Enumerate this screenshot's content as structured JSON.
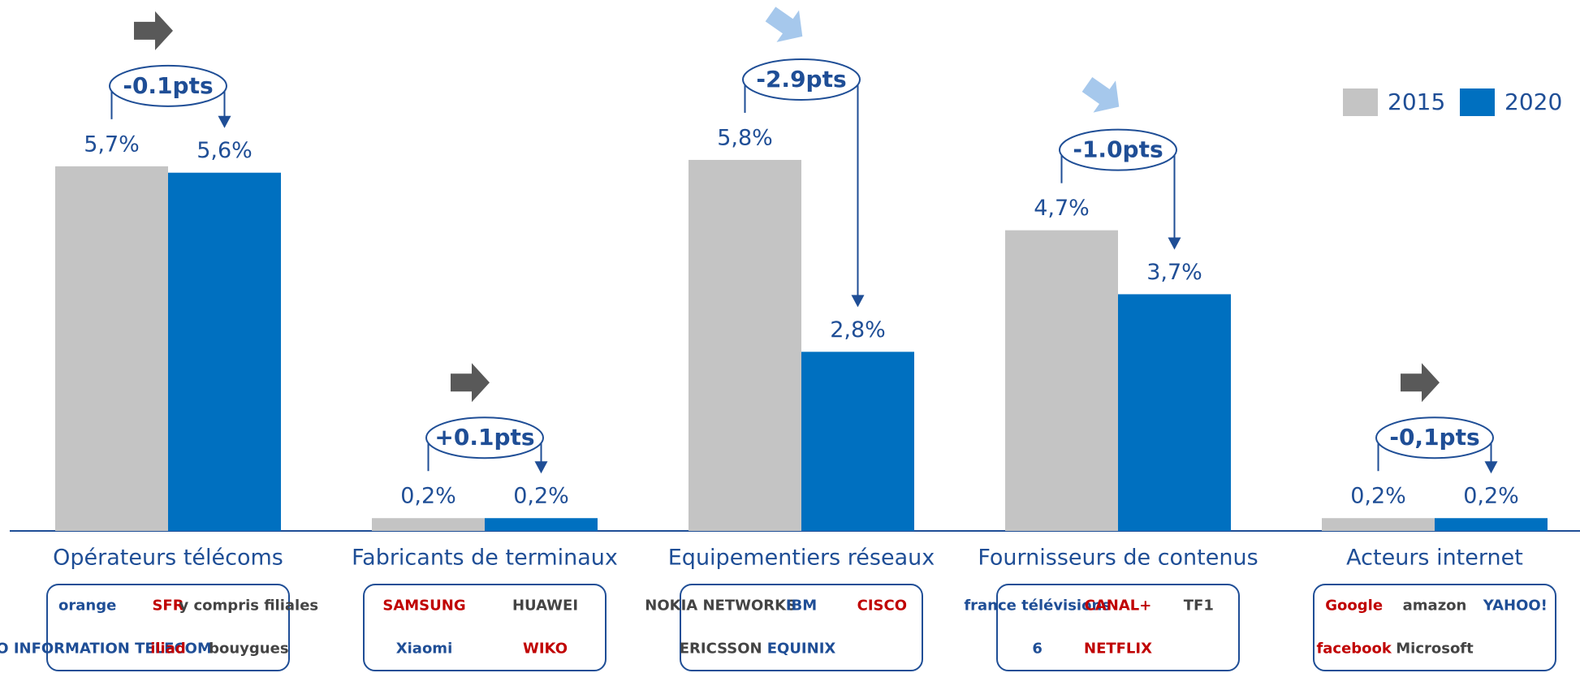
{
  "chart_data": {
    "type": "bar",
    "categories": [
      "Opérateurs télécoms",
      "Fabricants de terminaux",
      "Equipementiers réseaux",
      "Fournisseurs de contenus",
      "Acteurs internet"
    ],
    "series": [
      {
        "name": "2015",
        "color": "#c4c4c4",
        "values": [
          5.7,
          0.2,
          5.8,
          4.7,
          0.2
        ],
        "value_labels": [
          "5,7%",
          "0,2%",
          "5,8%",
          "4,7%",
          "0,2%"
        ]
      },
      {
        "name": "2020",
        "color": "#0070c0",
        "values": [
          5.6,
          0.2,
          2.8,
          3.7,
          0.2
        ],
        "value_labels": [
          "5,6%",
          "0,2%",
          "2,8%",
          "3,7%",
          "0,2%"
        ]
      }
    ],
    "annotations": [
      "-0.1pts",
      "+0.1pts",
      "-2.9pts",
      "-1.0pts",
      "-0,1pts"
    ],
    "logos": [
      [
        "orange",
        "SFR",
        "y compris filiales",
        "EURO INFORMATION TELECOM",
        "iliad",
        "bouygues"
      ],
      [
        "SAMSUNG",
        "HUAWEI",
        "Xiaomi",
        "WIKO"
      ],
      [
        "NOKIA NETWORKS",
        "IBM",
        "CISCO",
        "ERICSSON",
        "EQUINIX"
      ],
      [
        "france télévisions",
        "CANAL+",
        "TF1",
        "6",
        "NETFLIX"
      ],
      [
        "Google",
        "amazon",
        "YAHOO!",
        "facebook",
        "Microsoft"
      ]
    ],
    "legend": "top-right"
  }
}
